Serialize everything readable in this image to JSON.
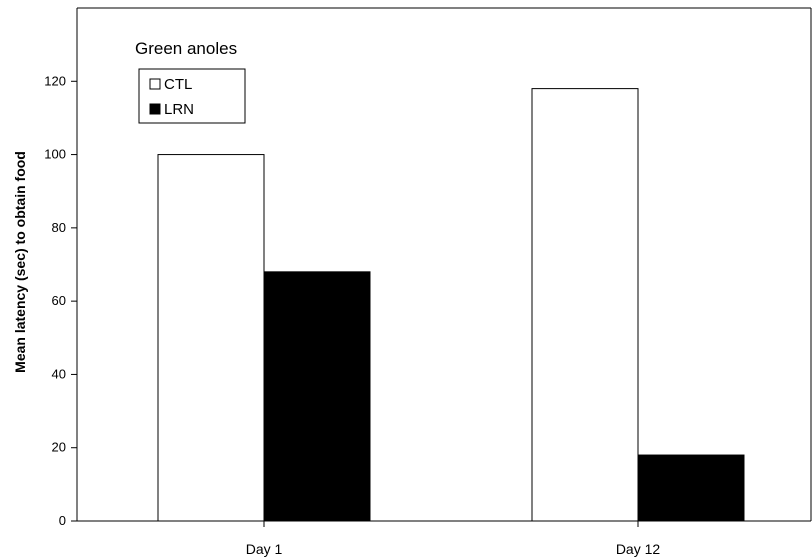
{
  "chart_data": {
    "type": "bar",
    "title": "",
    "annotation": "Green anoles",
    "categories": [
      "Day 1",
      "Day 12"
    ],
    "series": [
      {
        "name": "CTL",
        "values": [
          100,
          118
        ],
        "color": "#ffffff"
      },
      {
        "name": "LRN",
        "values": [
          68,
          18
        ],
        "color": "#000000"
      }
    ],
    "xlabel": "",
    "ylabel": "Mean latency (sec) to obtain food",
    "ylim": [
      0,
      140
    ],
    "yticks": [
      0,
      20,
      40,
      60,
      80,
      100,
      120
    ],
    "grid": false,
    "legend_position": "top-left"
  }
}
